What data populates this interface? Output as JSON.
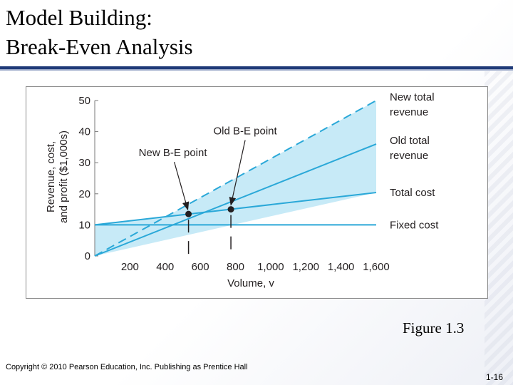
{
  "slide": {
    "title_line1": "Model Building:",
    "title_line2": "Break-Even Analysis",
    "caption": "Figure 1.3",
    "copyright": "Copyright © 2010 Pearson Education, Inc. Publishing as Prentice Hall",
    "page_number": "1-16"
  },
  "colors": {
    "line": "#2aa8d8",
    "fill": "#bde6f6",
    "title_rule": "#1f3a78",
    "point": "#231f20"
  },
  "chart_data": {
    "type": "line",
    "xlabel": "Volume, v",
    "ylabel_line1": "Revenue, cost,",
    "ylabel_line2": "and profit ($1,000s)",
    "xlim": [
      0,
      1600
    ],
    "ylim": [
      0,
      50
    ],
    "x_ticks": [
      200,
      400,
      600,
      800,
      1000,
      1200,
      1400,
      1600
    ],
    "x_tick_labels": [
      "200",
      "400",
      "600",
      "800",
      "1,000",
      "1,200",
      "1,400",
      "1,600"
    ],
    "y_ticks": [
      0,
      10,
      20,
      30,
      40,
      50
    ],
    "y_tick_labels": [
      "0",
      "10",
      "20",
      "30",
      "40",
      "50"
    ],
    "series": [
      {
        "name": "New total revenue",
        "label_line1": "New total",
        "label_line2": "revenue",
        "style": "dashed",
        "x": [
          0,
          1600
        ],
        "y": [
          0,
          50
        ]
      },
      {
        "name": "Old total revenue",
        "label_line1": "Old total",
        "label_line2": "revenue",
        "style": "solid",
        "x": [
          0,
          1600
        ],
        "y": [
          0,
          36
        ]
      },
      {
        "name": "Total cost",
        "label_line1": "Total cost",
        "label_line2": "",
        "style": "solid",
        "x": [
          0,
          1600
        ],
        "y": [
          10,
          20.4
        ]
      },
      {
        "name": "Fixed cost",
        "label_line1": "Fixed cost",
        "label_line2": "",
        "style": "solid",
        "x": [
          0,
          1600
        ],
        "y": [
          10,
          10
        ]
      }
    ],
    "annotations": [
      {
        "text": "New B-E point",
        "x": 533,
        "y": 13.5
      },
      {
        "text": "Old B-E point",
        "x": 774,
        "y": 15
      }
    ]
  }
}
